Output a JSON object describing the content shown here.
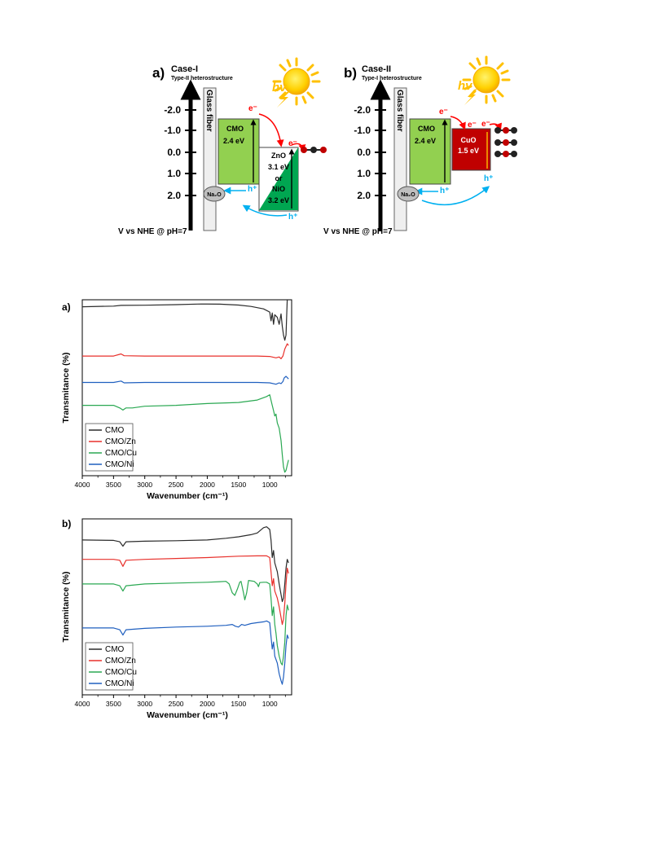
{
  "schemes": [
    {
      "panel_letter": "a)",
      "case": "Case-I",
      "subtitle": "Type-II heterostructure",
      "hv": "hv",
      "glass_fiber": "Glass fiber",
      "axis_ticks": [
        "-2.0",
        "-1.0",
        "0.0",
        "1.0",
        "2.0"
      ],
      "axis_caption": "V vs NHE @ pH=7",
      "cmo_label": "CMO",
      "cmo_gap": "2.4 eV",
      "second_lines": [
        "ZnO",
        "3.1 eV",
        "or",
        "NiO",
        "3.2 eV"
      ],
      "electron": "e⁻",
      "hole": "h⁺",
      "na2o": "Na₂O",
      "colors": {
        "cmo": "#92d050",
        "second": "#00a651",
        "electron": "#ff0000",
        "hole": "#00b0f0"
      }
    },
    {
      "panel_letter": "b)",
      "case": "Case-II",
      "subtitle": "Type-I heterostructure",
      "hv": "hv",
      "glass_fiber": "Glass fiber",
      "axis_ticks": [
        "-2.0",
        "-1.0",
        "0.0",
        "1.0",
        "2.0"
      ],
      "axis_caption": "V vs NHE @ pH=7",
      "cmo_label": "CMO",
      "cmo_gap": "2.4 eV",
      "second_lines": [
        "CuO",
        "1.5 eV"
      ],
      "electron": "e⁻",
      "hole": "h⁺",
      "na2o": "Na₂O",
      "colors": {
        "cmo": "#92d050",
        "second": "#c00000",
        "electron": "#ff0000",
        "hole": "#00b0f0"
      }
    }
  ],
  "chart_data": [
    {
      "type": "line",
      "panel_letter": "a)",
      "xlabel": "Wavenumber (cm⁻¹)",
      "ylabel": "Transmitance (%)",
      "xlim": [
        4000,
        650
      ],
      "x_ticks": [
        4000,
        3500,
        3000,
        2500,
        2000,
        1500,
        1000
      ],
      "legend_position": "bottom-left",
      "legend": [
        "CMO",
        "CMO/Zn",
        "CMO/Cu",
        "CMO/Ni"
      ],
      "series": [
        {
          "name": "CMO",
          "color": "#2b2b2b",
          "values": [
            [
              4000,
              96
            ],
            [
              3500,
              96.4
            ],
            [
              3380,
              96.8
            ],
            [
              3000,
              96.9
            ],
            [
              2500,
              97.2
            ],
            [
              2100,
              97.6
            ],
            [
              1800,
              97.5
            ],
            [
              1500,
              97.0
            ],
            [
              1300,
              96.2
            ],
            [
              1100,
              94.8
            ],
            [
              1000,
              93.0
            ],
            [
              980,
              88
            ],
            [
              960,
              92.5
            ],
            [
              940,
              86
            ],
            [
              920,
              91.5
            ],
            [
              880,
              90
            ],
            [
              850,
              86
            ],
            [
              820,
              92
            ],
            [
              800,
              85
            ],
            [
              780,
              80
            ],
            [
              760,
              77
            ],
            [
              740,
              80
            ],
            [
              720,
              100
            ]
          ]
        },
        {
          "name": "CMO/Zn",
          "color": "#e8302b",
          "values": [
            [
              4000,
              68
            ],
            [
              3500,
              68
            ],
            [
              3380,
              69.2
            ],
            [
              3330,
              68.2
            ],
            [
              3000,
              68
            ],
            [
              2500,
              68
            ],
            [
              2000,
              68
            ],
            [
              1500,
              68
            ],
            [
              1200,
              68
            ],
            [
              1000,
              67.8
            ],
            [
              900,
              67
            ],
            [
              850,
              67.5
            ],
            [
              820,
              66.5
            ],
            [
              790,
              68
            ],
            [
              760,
              72
            ],
            [
              720,
              75
            ],
            [
              700,
              74
            ]
          ]
        },
        {
          "name": "CMO/Ni",
          "color": "#1f5fbf",
          "values": [
            [
              4000,
              53
            ],
            [
              3500,
              53
            ],
            [
              3380,
              53.8
            ],
            [
              3330,
              52.8
            ],
            [
              3000,
              53
            ],
            [
              2500,
              53
            ],
            [
              2000,
              53
            ],
            [
              1500,
              53
            ],
            [
              1200,
              53
            ],
            [
              1000,
              52.8
            ],
            [
              900,
              52
            ],
            [
              850,
              52.8
            ],
            [
              820,
              52.3
            ],
            [
              790,
              53.5
            ],
            [
              770,
              55.5
            ],
            [
              740,
              56.5
            ],
            [
              700,
              55
            ]
          ]
        },
        {
          "name": "CMO/Cu",
          "color": "#2aa852",
          "values": [
            [
              4000,
              40
            ],
            [
              3700,
              40
            ],
            [
              3500,
              40
            ],
            [
              3400,
              38.5
            ],
            [
              3350,
              37.3
            ],
            [
              3300,
              38.5
            ],
            [
              3200,
              38.5
            ],
            [
              3000,
              39.5
            ],
            [
              2500,
              40
            ],
            [
              2000,
              41
            ],
            [
              1500,
              41.6
            ],
            [
              1200,
              43
            ],
            [
              1050,
              45
            ],
            [
              1000,
              46
            ],
            [
              960,
              40
            ],
            [
              940,
              37
            ],
            [
              920,
              34
            ],
            [
              900,
              35
            ],
            [
              880,
              30
            ],
            [
              850,
              27
            ],
            [
              820,
              20
            ],
            [
              800,
              12
            ],
            [
              780,
              5
            ],
            [
              760,
              2
            ],
            [
              740,
              3
            ],
            [
              720,
              6
            ],
            [
              700,
              9
            ]
          ]
        }
      ]
    },
    {
      "type": "line",
      "panel_letter": "b)",
      "xlabel": "Wavenumber (cm⁻¹)",
      "ylabel": "Transmitance (%)",
      "xlim": [
        4000,
        650
      ],
      "x_ticks": [
        4000,
        3500,
        3000,
        2500,
        2000,
        1500,
        1000
      ],
      "legend_position": "bottom-left",
      "legend": [
        "CMO",
        "CMO/Zn",
        "CMO/Cu",
        "CMO/Ni"
      ],
      "series": [
        {
          "name": "CMO",
          "color": "#2b2b2b",
          "values": [
            [
              4000,
              88
            ],
            [
              3500,
              87.8
            ],
            [
              3400,
              87
            ],
            [
              3350,
              84.5
            ],
            [
              3300,
              87
            ],
            [
              3000,
              87.3
            ],
            [
              2500,
              87.6
            ],
            [
              2000,
              88
            ],
            [
              1700,
              89
            ],
            [
              1500,
              89.8
            ],
            [
              1300,
              91
            ],
            [
              1200,
              92
            ],
            [
              1100,
              95
            ],
            [
              1050,
              95.5
            ],
            [
              1000,
              94
            ],
            [
              980,
              88
            ],
            [
              960,
              78
            ],
            [
              940,
              82
            ],
            [
              920,
              75
            ],
            [
              880,
              70
            ],
            [
              850,
              63
            ],
            [
              820,
              57
            ],
            [
              800,
              53
            ],
            [
              780,
              55
            ],
            [
              760,
              63
            ],
            [
              740,
              72
            ],
            [
              720,
              77
            ],
            [
              700,
              75
            ]
          ]
        },
        {
          "name": "CMO/Zn",
          "color": "#e8302b",
          "values": [
            [
              4000,
              77
            ],
            [
              3500,
              77
            ],
            [
              3400,
              76.5
            ],
            [
              3350,
              73
            ],
            [
              3300,
              76.5
            ],
            [
              3000,
              77
            ],
            [
              2500,
              77.5
            ],
            [
              2000,
              78
            ],
            [
              1500,
              78.8
            ],
            [
              1200,
              79
            ],
            [
              1050,
              79
            ],
            [
              1000,
              78
            ],
            [
              980,
              70
            ],
            [
              960,
              62
            ],
            [
              940,
              66
            ],
            [
              920,
              59
            ],
            [
              880,
              55
            ],
            [
              850,
              50
            ],
            [
              820,
              44
            ],
            [
              800,
              40
            ],
            [
              780,
              43
            ],
            [
              760,
              52
            ],
            [
              740,
              63
            ],
            [
              720,
              72
            ],
            [
              700,
              69
            ]
          ]
        },
        {
          "name": "CMO/Cu",
          "color": "#2aa852",
          "values": [
            [
              4000,
              63
            ],
            [
              3500,
              63
            ],
            [
              3400,
              62
            ],
            [
              3350,
              59
            ],
            [
              3300,
              62
            ],
            [
              3000,
              63
            ],
            [
              2500,
              63.5
            ],
            [
              2000,
              64
            ],
            [
              1800,
              64.3
            ],
            [
              1700,
              64.5
            ],
            [
              1650,
              63
            ],
            [
              1600,
              58
            ],
            [
              1560,
              56.5
            ],
            [
              1520,
              60
            ],
            [
              1480,
              64
            ],
            [
              1460,
              64.5
            ],
            [
              1420,
              58
            ],
            [
              1400,
              54
            ],
            [
              1370,
              58
            ],
            [
              1340,
              65
            ],
            [
              1250,
              64.5
            ],
            [
              1200,
              63
            ],
            [
              1180,
              61.5
            ],
            [
              1160,
              63.8
            ],
            [
              1100,
              64
            ],
            [
              1050,
              64
            ],
            [
              1000,
              63
            ],
            [
              980,
              55
            ],
            [
              960,
              45
            ],
            [
              940,
              50
            ],
            [
              920,
              40
            ],
            [
              900,
              35
            ],
            [
              880,
              28
            ],
            [
              850,
              22
            ],
            [
              820,
              18
            ],
            [
              800,
              17
            ],
            [
              780,
              22
            ],
            [
              760,
              30
            ],
            [
              740,
              45
            ],
            [
              720,
              51
            ],
            [
              700,
              48
            ]
          ]
        },
        {
          "name": "CMO/Ni",
          "color": "#1f5fbf",
          "values": [
            [
              4000,
              38
            ],
            [
              3500,
              38
            ],
            [
              3400,
              37
            ],
            [
              3350,
              34
            ],
            [
              3300,
              37
            ],
            [
              3000,
              37.8
            ],
            [
              2500,
              38.5
            ],
            [
              2000,
              39
            ],
            [
              1700,
              39.5
            ],
            [
              1600,
              40
            ],
            [
              1550,
              39
            ],
            [
              1500,
              38.5
            ],
            [
              1450,
              40
            ],
            [
              1400,
              39.5
            ],
            [
              1300,
              40.5
            ],
            [
              1200,
              41
            ],
            [
              1100,
              41.5
            ],
            [
              1050,
              42
            ],
            [
              1000,
              41
            ],
            [
              980,
              33
            ],
            [
              960,
              26
            ],
            [
              940,
              30
            ],
            [
              920,
              22
            ],
            [
              880,
              18
            ],
            [
              850,
              12
            ],
            [
              820,
              8
            ],
            [
              800,
              6
            ],
            [
              780,
              10
            ],
            [
              760,
              18
            ],
            [
              740,
              28
            ],
            [
              720,
              34
            ],
            [
              700,
              32
            ]
          ]
        }
      ]
    }
  ]
}
